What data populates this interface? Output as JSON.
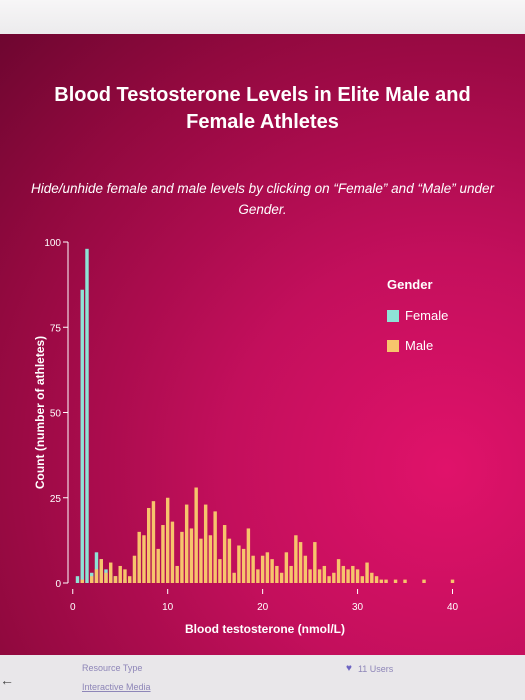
{
  "title": "Blood Testosterone Levels in Elite Male and Female Athletes",
  "subtitle": "Hide/unhide female and male levels by clicking on “Female” and “Male” under Gender.",
  "legend": {
    "title": "Gender",
    "items": [
      {
        "label": "Female",
        "color": "#8ee3d6"
      },
      {
        "label": "Male",
        "color": "#f7c46c"
      }
    ]
  },
  "footer": {
    "resource_label": "Resource Type",
    "resource_value": "Interactive Media",
    "users": "11 Users",
    "heart_icon": "heart-icon"
  },
  "chart_data": {
    "type": "bar",
    "title": "",
    "xlabel": "Blood testosterone (nmol/L)",
    "ylabel": "Count (number of athletes)",
    "xlim": [
      -0.5,
      41
    ],
    "ylim": [
      0,
      100
    ],
    "xticks": [
      0,
      10,
      20,
      30,
      40
    ],
    "yticks": [
      0,
      25,
      50,
      75,
      100
    ],
    "bin_width": 0.5,
    "series": [
      {
        "name": "Female",
        "color": "#8ee3d6",
        "x": [
          0.5,
          1.0,
          1.5,
          2.0,
          2.5,
          3.0,
          3.5,
          4.0,
          4.5,
          5.0,
          5.5,
          6.0,
          7.0,
          8.0
        ],
        "values": [
          2,
          86,
          98,
          3,
          9,
          7,
          4,
          3,
          2,
          1,
          1,
          1,
          1,
          1
        ]
      },
      {
        "name": "Male",
        "color": "#f7c46c",
        "x": [
          1.0,
          2.0,
          2.5,
          3.0,
          3.5,
          4.0,
          4.5,
          5.0,
          5.5,
          6.0,
          6.5,
          7.0,
          7.5,
          8.0,
          8.5,
          9.0,
          9.5,
          10.0,
          10.5,
          11.0,
          11.5,
          12.0,
          12.5,
          13.0,
          13.5,
          14.0,
          14.5,
          15.0,
          15.5,
          16.0,
          16.5,
          17.0,
          17.5,
          18.0,
          18.5,
          19.0,
          19.5,
          20.0,
          20.5,
          21.0,
          21.5,
          22.0,
          22.5,
          23.0,
          23.5,
          24.0,
          24.5,
          25.0,
          25.5,
          26.0,
          26.5,
          27.0,
          27.5,
          28.0,
          28.5,
          29.0,
          29.5,
          30.0,
          30.5,
          31.0,
          31.5,
          32.0,
          32.5,
          33.0,
          34.0,
          35.0,
          37.0,
          40.0
        ],
        "values": [
          1,
          2,
          4,
          7,
          3,
          6,
          2,
          5,
          4,
          2,
          8,
          15,
          14,
          22,
          24,
          10,
          17,
          25,
          18,
          5,
          15,
          23,
          16,
          28,
          13,
          23,
          14,
          21,
          7,
          17,
          13,
          3,
          11,
          10,
          16,
          8,
          4,
          8,
          9,
          7,
          5,
          3,
          9,
          5,
          14,
          12,
          8,
          4,
          12,
          4,
          5,
          2,
          3,
          7,
          5,
          4,
          5,
          4,
          2,
          6,
          3,
          2,
          1,
          1,
          1,
          1,
          1,
          1
        ]
      }
    ]
  }
}
